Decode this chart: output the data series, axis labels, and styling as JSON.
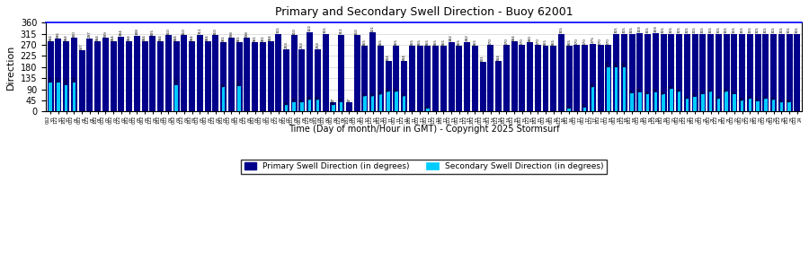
{
  "title": "Primary and Secondary Swell Direction - Buoy 62001",
  "xlabel": "Time (Day of month/Hour in GMT) - Copyright 2025 Stormsurf",
  "ylabel": "Direction",
  "primary_color": "#00008B",
  "secondary_color": "#00CCFF",
  "ylim": [
    0,
    360
  ],
  "yticks": [
    0,
    45,
    90,
    135,
    180,
    225,
    270,
    315,
    360
  ],
  "primary_label": "Primary Swell Direction (in degrees)",
  "secondary_label": "Secondary Swell Direction (in degrees)",
  "x_labels": [
    "062\n30",
    "122\n30",
    "182\n30",
    "002\n01",
    "062\n01",
    "122\n01",
    "182\n01",
    "002\n02",
    "062\n02",
    "122\n02",
    "182\n02",
    "002\n03",
    "062\n03",
    "122\n03",
    "182\n03",
    "002\n04",
    "062\n04",
    "122\n04",
    "182\n04",
    "002\n05",
    "062\n05",
    "122\n05",
    "182\n05",
    "002\n06",
    "062\n06",
    "122\n06",
    "182\n06",
    "002\n07",
    "062\n07",
    "122\n07",
    "182\n07",
    "002\n08",
    "062\n08",
    "122\n08",
    "182\n08",
    "002\n09",
    "062\n09",
    "122\n09",
    "182\n09",
    "002\n10",
    "062\n10",
    "122\n10",
    "182\n10",
    "002\n11",
    "062\n11",
    "122\n11",
    "182\n11",
    "002\n12",
    "062\n12",
    "122\n12",
    "182\n12",
    "002\n13",
    "062\n13",
    "122\n13",
    "182\n13",
    "002\n14",
    "062\n14",
    "122\n14",
    "182\n14",
    "002\n15",
    "062\n15",
    "122\n15",
    "182\n15",
    "002\n16",
    "062\n16",
    "122\n16",
    "182\n16",
    "002\n17",
    "062\n17",
    "122\n17",
    "182\n17",
    "002\n18",
    "062\n18",
    "122\n18",
    "182\n18",
    "002\n19",
    "062\n19",
    "122\n19",
    "182\n19",
    "002\n20",
    "062\n20",
    "122\n20",
    "182\n20",
    "002\n21",
    "062\n21",
    "122\n21",
    "182\n21",
    "002\n22",
    "062\n22",
    "122\n22",
    "182\n22",
    "002\n23",
    "062\n23",
    "122\n23",
    "182\n23",
    "002\n24"
  ],
  "primary_data": [
    284,
    296,
    284,
    300,
    247,
    297,
    284,
    299,
    284,
    304,
    284,
    308,
    284,
    305,
    284,
    310,
    284,
    310,
    284,
    311,
    284,
    310,
    281,
    298,
    281,
    298,
    281,
    281,
    284,
    315,
    253,
    310,
    253,
    322,
    253,
    315,
    37,
    311,
    37,
    310,
    265,
    321,
    265,
    204,
    265,
    204,
    265,
    265,
    265,
    265,
    265,
    282,
    265,
    282,
    265,
    201,
    270,
    204,
    270,
    284,
    270,
    280,
    270,
    265,
    265,
    315,
    265,
    270,
    270,
    275,
    270,
    270,
    315,
    315,
    315,
    319,
    315,
    319,
    315,
    315,
    315,
    315,
    315,
    315,
    315,
    315,
    315,
    315,
    315,
    315,
    315,
    315,
    315,
    315,
    315,
    315
  ],
  "secondary_data": [
    116,
    117,
    108,
    116,
    null,
    null,
    null,
    null,
    null,
    null,
    null,
    null,
    null,
    null,
    null,
    null,
    108,
    null,
    null,
    null,
    null,
    null,
    99,
    null,
    103,
    null,
    null,
    null,
    null,
    null,
    26,
    39,
    36,
    49,
    49,
    null,
    26,
    39,
    null,
    null,
    63,
    63,
    69,
    80,
    80,
    63,
    null,
    null,
    11,
    null,
    null,
    null,
    null,
    null,
    null,
    null,
    null,
    null,
    null,
    null,
    null,
    null,
    null,
    null,
    null,
    null,
    12,
    null,
    17,
    98,
    null,
    179,
    180,
    180,
    74,
    79,
    70,
    79,
    69,
    91,
    81,
    51,
    61,
    71,
    81,
    51,
    81,
    71,
    44,
    51,
    42,
    51,
    47,
    37,
    38
  ]
}
